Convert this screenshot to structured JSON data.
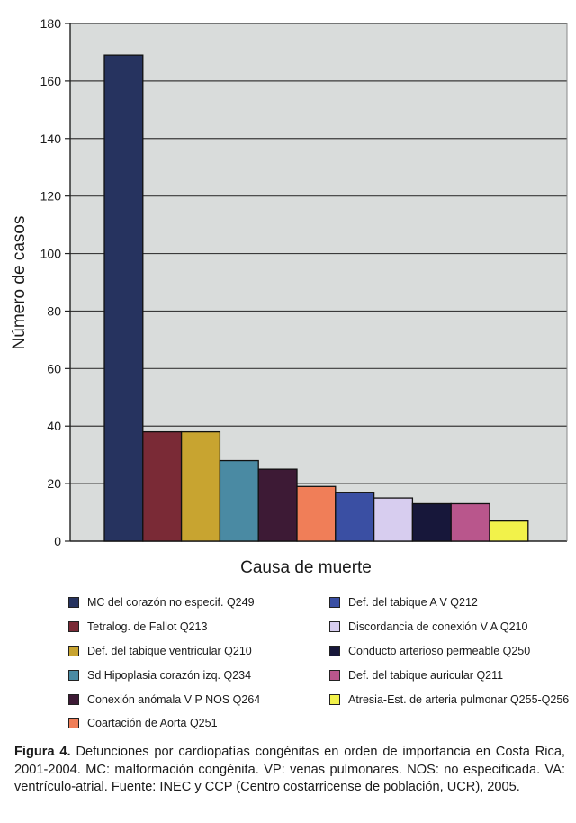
{
  "chart_data": {
    "type": "bar",
    "xlabel": "Causa de muerte",
    "ylabel": "Número de casos",
    "ylim": [
      0,
      180
    ],
    "yticks": [
      0,
      20,
      40,
      60,
      80,
      100,
      120,
      140,
      160,
      180
    ],
    "grid": true,
    "legend_placement": "bottom",
    "background_color": "#d9dcdb",
    "categories": [
      "MC del corazón no especif. Q249",
      "Tetralog. de Fallot Q213",
      "Def. del tabique ventricular Q210",
      "Sd Hipoplasia corazón izq. Q234",
      "Conexión anómala V P NOS Q264",
      "Coartación de Aorta Q251",
      "Def. del tabique A V Q212",
      "Discordancia de conexión V A Q210",
      "Conducto arterioso permeable Q250",
      "Def. del tabique auricular Q211",
      "Atresia-Est. de arteria pulmonar Q255-Q256"
    ],
    "values": [
      169,
      38,
      38,
      28,
      25,
      19,
      17,
      15,
      13,
      13,
      7
    ],
    "colors": [
      "#26335f",
      "#7a2a36",
      "#c8a430",
      "#4a8aa3",
      "#3d1a35",
      "#f07e58",
      "#3a4fa3",
      "#d7cdef",
      "#17173a",
      "#b9568c",
      "#f2f24a"
    ]
  },
  "caption": {
    "label": "Figura 4.",
    "text": " Defunciones por cardiopatías congénitas en orden de importancia en Costa Rica, 2001-2004. MC: malformación congénita. VP: venas pulmonares. NOS: no especificada. VA: ventrículo-atrial. Fuente: INEC y CCP (Centro costarricense de población, UCR), 2005."
  }
}
